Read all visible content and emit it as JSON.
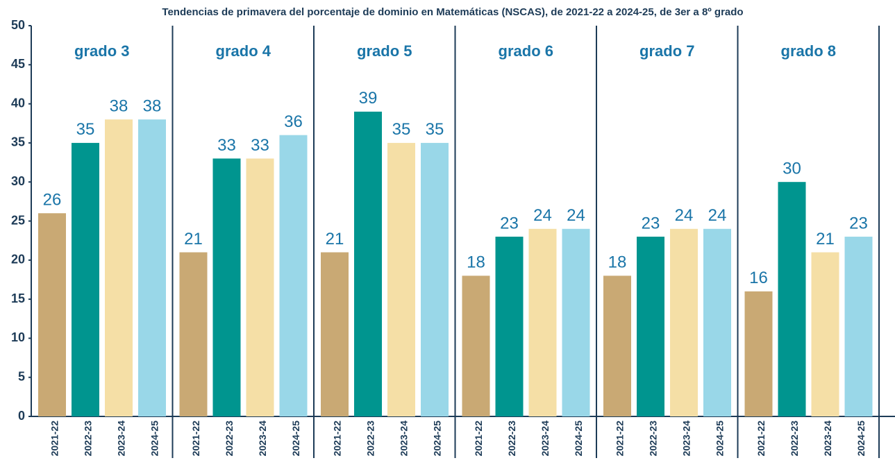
{
  "chart_data": {
    "type": "bar",
    "title": "Tendencias de primavera del porcentaje de dominio en Matemáticas (NSCAS), de 2021-22 a 2024-25, de 3er a 8º grado",
    "categories": [
      "grado 3",
      "grado 4",
      "grado 5",
      "grado 6",
      "grado 7",
      "grado 8"
    ],
    "series": [
      {
        "name": "2021-22",
        "color": "#c9a974",
        "values": [
          26,
          21,
          21,
          18,
          18,
          16
        ]
      },
      {
        "name": "2022-23",
        "color": "#00958f",
        "values": [
          35,
          33,
          39,
          23,
          23,
          30
        ]
      },
      {
        "name": "2023-24",
        "color": "#f5dfa6",
        "values": [
          38,
          33,
          35,
          24,
          24,
          21
        ]
      },
      {
        "name": "2024-25",
        "color": "#99d7e8",
        "values": [
          38,
          36,
          35,
          24,
          24,
          23
        ]
      }
    ],
    "ylim": [
      0,
      50
    ],
    "yticks": [
      0,
      5,
      10,
      15,
      20,
      25,
      30,
      35,
      40,
      45,
      50
    ],
    "grid": false
  }
}
